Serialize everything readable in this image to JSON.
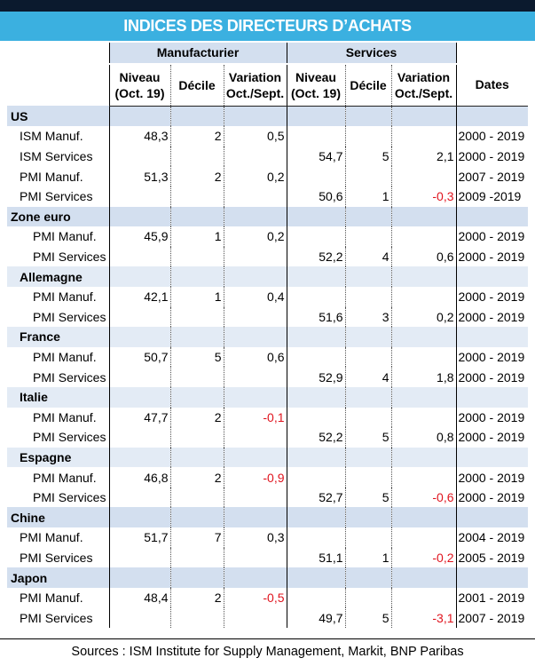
{
  "title": "INDICES DES DIRECTEURS D’ACHATS",
  "groups": {
    "manufacturier": "Manufacturier",
    "services": "Services"
  },
  "headers": {
    "niveau_l1": "Niveau",
    "niveau_l2": "(Oct. 19)",
    "decile": "Décile",
    "variation_l1": "Variation",
    "variation_l2": "Oct./Sept.",
    "dates": "Dates"
  },
  "sections": {
    "us": "US",
    "zone_euro": "Zone euro",
    "allemagne": "Allemagne",
    "france": "France",
    "italie": "Italie",
    "espagne": "Espagne",
    "chine": "Chine",
    "japon": "Japon"
  },
  "rows": {
    "us_ism_manuf": {
      "label": "ISM Manuf.",
      "m_niveau": "48,3",
      "m_decile": "2",
      "m_variation": "0,5",
      "s_niveau": "",
      "s_decile": "",
      "s_variation": "",
      "dates": "2000 - 2019"
    },
    "us_ism_serv": {
      "label": "ISM Services",
      "m_niveau": "",
      "m_decile": "",
      "m_variation": "",
      "s_niveau": "54,7",
      "s_decile": "5",
      "s_variation": "2,1",
      "dates": "2000 - 2019"
    },
    "us_pmi_manuf": {
      "label": "PMI Manuf.",
      "m_niveau": "51,3",
      "m_decile": "2",
      "m_variation": "0,2",
      "s_niveau": "",
      "s_decile": "",
      "s_variation": "",
      "dates": "2007 - 2019"
    },
    "us_pmi_serv": {
      "label": "PMI Services",
      "m_niveau": "",
      "m_decile": "",
      "m_variation": "",
      "s_niveau": "50,6",
      "s_decile": "1",
      "s_variation": "-0,3",
      "dates": "2009 -2019"
    },
    "ze_pmi_manuf": {
      "label": "PMI Manuf.",
      "m_niveau": "45,9",
      "m_decile": "1",
      "m_variation": "0,2",
      "s_niveau": "",
      "s_decile": "",
      "s_variation": "",
      "dates": "2000 - 2019"
    },
    "ze_pmi_serv": {
      "label": "PMI Services",
      "m_niveau": "",
      "m_decile": "",
      "m_variation": "",
      "s_niveau": "52,2",
      "s_decile": "4",
      "s_variation": "0,6",
      "dates": "2000 - 2019"
    },
    "de_pmi_manuf": {
      "label": "PMI Manuf.",
      "m_niveau": "42,1",
      "m_decile": "1",
      "m_variation": "0,4",
      "s_niveau": "",
      "s_decile": "",
      "s_variation": "",
      "dates": "2000 - 2019"
    },
    "de_pmi_serv": {
      "label": "PMI Services",
      "m_niveau": "",
      "m_decile": "",
      "m_variation": "",
      "s_niveau": "51,6",
      "s_decile": "3",
      "s_variation": "0,2",
      "dates": "2000 - 2019"
    },
    "fr_pmi_manuf": {
      "label": "PMI Manuf.",
      "m_niveau": "50,7",
      "m_decile": "5",
      "m_variation": "0,6",
      "s_niveau": "",
      "s_decile": "",
      "s_variation": "",
      "dates": "2000 - 2019"
    },
    "fr_pmi_serv": {
      "label": "PMI Services",
      "m_niveau": "",
      "m_decile": "",
      "m_variation": "",
      "s_niveau": "52,9",
      "s_decile": "4",
      "s_variation": "1,8",
      "dates": "2000 - 2019"
    },
    "it_pmi_manuf": {
      "label": "PMI Manuf.",
      "m_niveau": "47,7",
      "m_decile": "2",
      "m_variation": "-0,1",
      "s_niveau": "",
      "s_decile": "",
      "s_variation": "",
      "dates": "2000 - 2019"
    },
    "it_pmi_serv": {
      "label": "PMI Services",
      "m_niveau": "",
      "m_decile": "",
      "m_variation": "",
      "s_niveau": "52,2",
      "s_decile": "5",
      "s_variation": "0,8",
      "dates": "2000 - 2019"
    },
    "es_pmi_manuf": {
      "label": "PMI Manuf.",
      "m_niveau": "46,8",
      "m_decile": "2",
      "m_variation": "-0,9",
      "s_niveau": "",
      "s_decile": "",
      "s_variation": "",
      "dates": "2000 - 2019"
    },
    "es_pmi_serv": {
      "label": "PMI Services",
      "m_niveau": "",
      "m_decile": "",
      "m_variation": "",
      "s_niveau": "52,7",
      "s_decile": "5",
      "s_variation": "-0,6",
      "dates": "2000 - 2019"
    },
    "cn_pmi_manuf": {
      "label": "PMI Manuf.",
      "m_niveau": "51,7",
      "m_decile": "7",
      "m_variation": "0,3",
      "s_niveau": "",
      "s_decile": "",
      "s_variation": "",
      "dates": "2004 - 2019"
    },
    "cn_pmi_serv": {
      "label": "PMI Services",
      "m_niveau": "",
      "m_decile": "",
      "m_variation": "",
      "s_niveau": "51,1",
      "s_decile": "1",
      "s_variation": "-0,2",
      "dates": "2005 - 2019"
    },
    "jp_pmi_manuf": {
      "label": "PMI Manuf.",
      "m_niveau": "48,4",
      "m_decile": "2",
      "m_variation": "-0,5",
      "s_niveau": "",
      "s_decile": "",
      "s_variation": "",
      "dates": "2001 - 2019"
    },
    "jp_pmi_serv": {
      "label": "PMI Services",
      "m_niveau": "",
      "m_decile": "",
      "m_variation": "",
      "s_niveau": "49,7",
      "s_decile": "5",
      "s_variation": "-3,1",
      "dates": "2007 - 2019"
    }
  },
  "colors": {
    "title_bar": "#3bb0e0",
    "section_bg": "#d3dfef",
    "negative": "#e0141e"
  },
  "source": "Sources : ISM Institute for Supply Management, Markit, BNP Paribas"
}
